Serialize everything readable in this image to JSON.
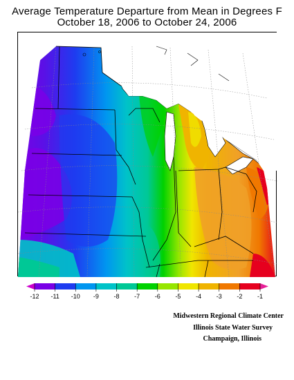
{
  "title_line1": "Average Temperature Departure from Mean in Degrees F",
  "title_line2": "October 18, 2006 to October 24, 2006",
  "legend": {
    "ticks": [
      "-12",
      "-11",
      "-10",
      "-9",
      "-8",
      "-7",
      "-6",
      "-5",
      "-4",
      "-3",
      "-2",
      "-1"
    ],
    "colors": [
      "#cc00cc",
      "#7a00e6",
      "#1e3cf0",
      "#0096f0",
      "#00c3c8",
      "#00c896",
      "#00d200",
      "#96e600",
      "#f0e600",
      "#f0b400",
      "#f07800",
      "#e6001e",
      "#e61e96"
    ]
  },
  "credits": {
    "line1": "Midwestern Regional Climate Center",
    "line2": "Illinois State Water Survey",
    "line3": "Champaign, Illinois"
  }
}
